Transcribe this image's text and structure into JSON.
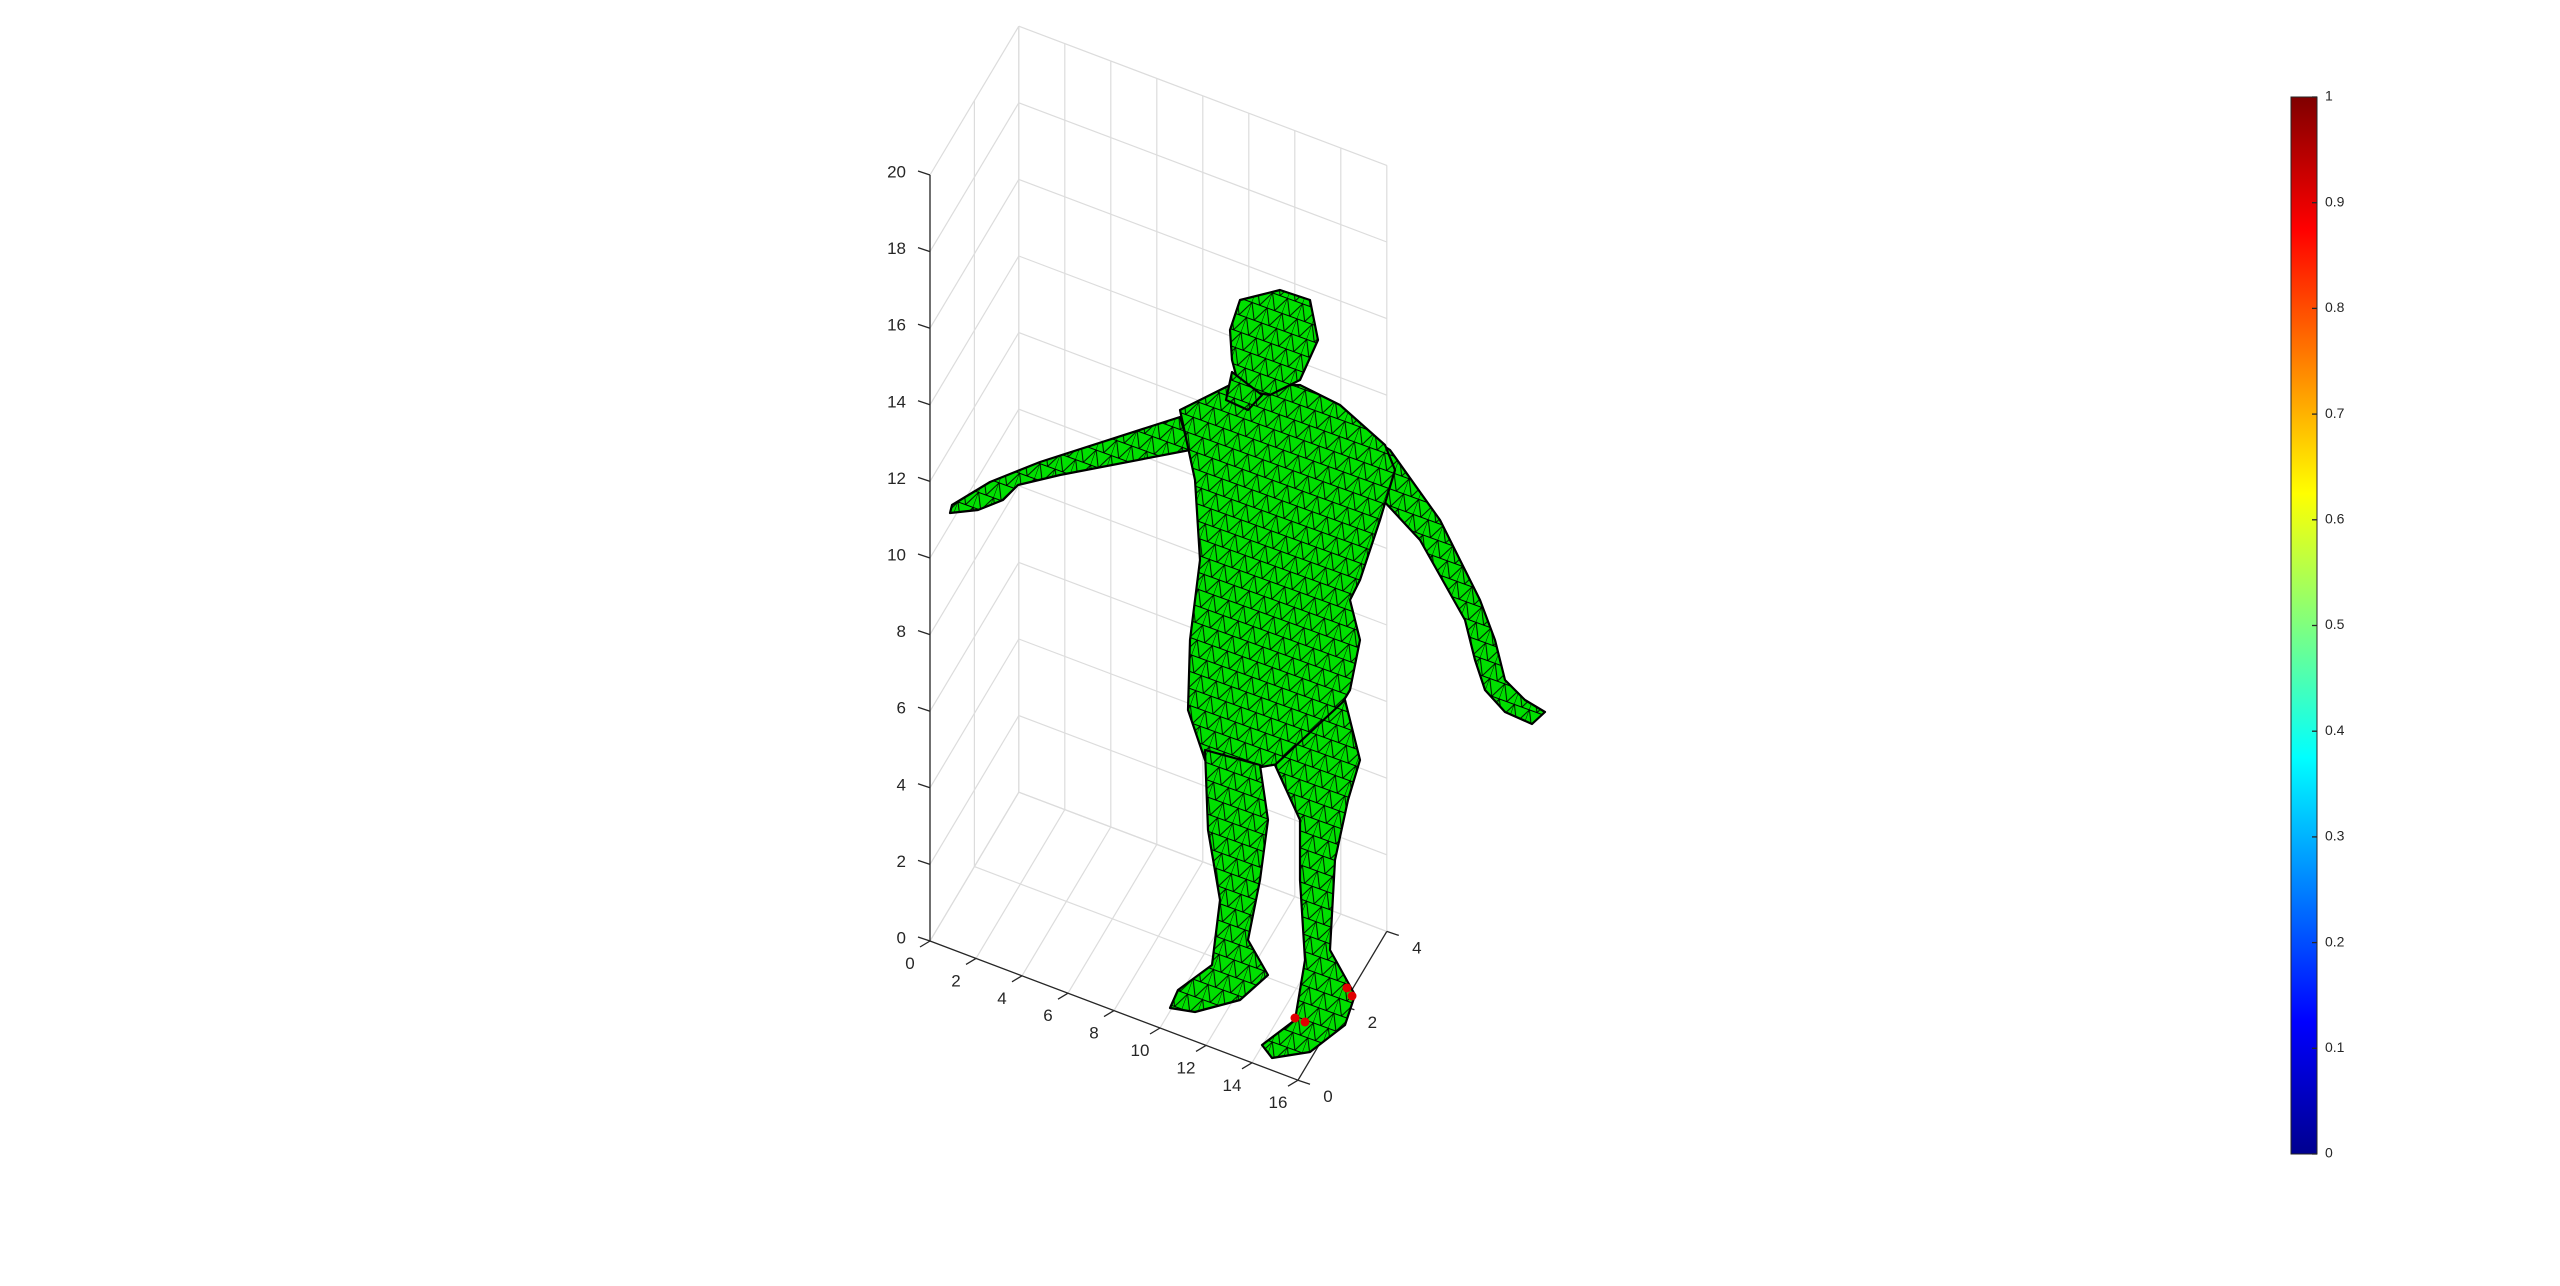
{
  "chart_data": {
    "type": "surface",
    "title": "",
    "xlabel": "",
    "ylabel": "",
    "zlabel": "",
    "xlim": [
      0,
      16
    ],
    "ylim": [
      0,
      4
    ],
    "zlim": [
      0,
      20
    ],
    "x_ticks": [
      "0",
      "2",
      "4",
      "6",
      "8",
      "10",
      "12",
      "14",
      "16"
    ],
    "y_ticks": [
      "0",
      "2",
      "4"
    ],
    "z_ticks": [
      "0",
      "2",
      "4",
      "6",
      "8",
      "10",
      "12",
      "14",
      "16",
      "18",
      "20"
    ],
    "grid": true,
    "box": false,
    "surface_description_colormap": "jet",
    "surface_color_value": 0.5,
    "surface_color": "#00e000",
    "edge_color": "#000000",
    "highlight_color": "#e00000",
    "colorbar": {
      "placement": "right",
      "limits": [
        0,
        1
      ],
      "ticks": [
        "0",
        "0.1",
        "0.2",
        "0.3",
        "0.4",
        "0.5",
        "0.6",
        "0.7",
        "0.8",
        "0.9",
        "1"
      ],
      "colormap": "jet"
    }
  }
}
